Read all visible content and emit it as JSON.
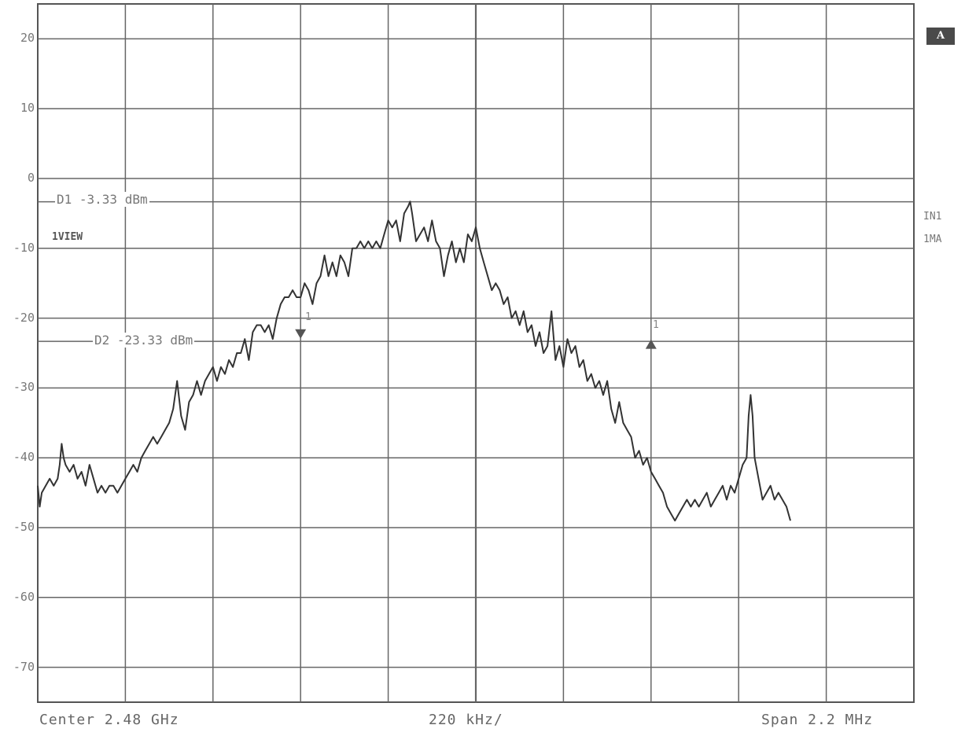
{
  "chart_data": {
    "type": "line",
    "ylim": [
      -75,
      25
    ],
    "xlim": [
      -1.1,
      1.1
    ],
    "y_ticks": [
      "20",
      "10",
      "0",
      "-10",
      "-20",
      "-30",
      "-40",
      "-50",
      "-60",
      "-70"
    ],
    "series": [
      {
        "values": [
          [
            -1.1,
            -44
          ],
          [
            -1.095,
            -47
          ],
          [
            -1.09,
            -45
          ],
          [
            -1.08,
            -44
          ],
          [
            -1.07,
            -43
          ],
          [
            -1.06,
            -44
          ],
          [
            -1.05,
            -43
          ],
          [
            -1.045,
            -41
          ],
          [
            -1.04,
            -38
          ],
          [
            -1.035,
            -40
          ],
          [
            -1.03,
            -41
          ],
          [
            -1.02,
            -42
          ],
          [
            -1.01,
            -41
          ],
          [
            -1.0,
            -43
          ],
          [
            -0.99,
            -42
          ],
          [
            -0.98,
            -44
          ],
          [
            -0.97,
            -41
          ],
          [
            -0.96,
            -43
          ],
          [
            -0.95,
            -45
          ],
          [
            -0.94,
            -44
          ],
          [
            -0.93,
            -45
          ],
          [
            -0.92,
            -44
          ],
          [
            -0.91,
            -44
          ],
          [
            -0.9,
            -45
          ],
          [
            -0.89,
            -44
          ],
          [
            -0.88,
            -43
          ],
          [
            -0.87,
            -42
          ],
          [
            -0.86,
            -41
          ],
          [
            -0.85,
            -42
          ],
          [
            -0.84,
            -40
          ],
          [
            -0.83,
            -39
          ],
          [
            -0.82,
            -38
          ],
          [
            -0.81,
            -37
          ],
          [
            -0.8,
            -38
          ],
          [
            -0.79,
            -37
          ],
          [
            -0.78,
            -36
          ],
          [
            -0.77,
            -35
          ],
          [
            -0.76,
            -33
          ],
          [
            -0.75,
            -29
          ],
          [
            -0.74,
            -34
          ],
          [
            -0.73,
            -36
          ],
          [
            -0.72,
            -32
          ],
          [
            -0.71,
            -31
          ],
          [
            -0.7,
            -29
          ],
          [
            -0.69,
            -31
          ],
          [
            -0.68,
            -29
          ],
          [
            -0.67,
            -28
          ],
          [
            -0.66,
            -27
          ],
          [
            -0.65,
            -29
          ],
          [
            -0.64,
            -27
          ],
          [
            -0.63,
            -28
          ],
          [
            -0.62,
            -26
          ],
          [
            -0.61,
            -27
          ],
          [
            -0.6,
            -25
          ],
          [
            -0.59,
            -25
          ],
          [
            -0.58,
            -23
          ],
          [
            -0.57,
            -26
          ],
          [
            -0.56,
            -22
          ],
          [
            -0.55,
            -21
          ],
          [
            -0.54,
            -21
          ],
          [
            -0.53,
            -22
          ],
          [
            -0.52,
            -21
          ],
          [
            -0.51,
            -23
          ],
          [
            -0.5,
            -20
          ],
          [
            -0.49,
            -18
          ],
          [
            -0.48,
            -17
          ],
          [
            -0.47,
            -17
          ],
          [
            -0.46,
            -16
          ],
          [
            -0.45,
            -17
          ],
          [
            -0.44,
            -17
          ],
          [
            -0.43,
            -15
          ],
          [
            -0.42,
            -16
          ],
          [
            -0.41,
            -18
          ],
          [
            -0.4,
            -15
          ],
          [
            -0.39,
            -14
          ],
          [
            -0.38,
            -11
          ],
          [
            -0.37,
            -14
          ],
          [
            -0.36,
            -12
          ],
          [
            -0.35,
            -14
          ],
          [
            -0.34,
            -11
          ],
          [
            -0.33,
            -12
          ],
          [
            -0.32,
            -14
          ],
          [
            -0.31,
            -10
          ],
          [
            -0.3,
            -10
          ],
          [
            -0.29,
            -9
          ],
          [
            -0.28,
            -10
          ],
          [
            -0.27,
            -9
          ],
          [
            -0.26,
            -10
          ],
          [
            -0.25,
            -9
          ],
          [
            -0.24,
            -10
          ],
          [
            -0.23,
            -8
          ],
          [
            -0.22,
            -6
          ],
          [
            -0.21,
            -7
          ],
          [
            -0.2,
            -6
          ],
          [
            -0.19,
            -9
          ],
          [
            -0.18,
            -5
          ],
          [
            -0.17,
            -4
          ],
          [
            -0.165,
            -3.3
          ],
          [
            -0.16,
            -5
          ],
          [
            -0.15,
            -9
          ],
          [
            -0.14,
            -8
          ],
          [
            -0.13,
            -7
          ],
          [
            -0.12,
            -9
          ],
          [
            -0.11,
            -6
          ],
          [
            -0.1,
            -9
          ],
          [
            -0.09,
            -10
          ],
          [
            -0.08,
            -14
          ],
          [
            -0.07,
            -11
          ],
          [
            -0.06,
            -9
          ],
          [
            -0.05,
            -12
          ],
          [
            -0.04,
            -10
          ],
          [
            -0.03,
            -12
          ],
          [
            -0.02,
            -8
          ],
          [
            -0.01,
            -9
          ],
          [
            0.0,
            -7
          ],
          [
            0.01,
            -10
          ],
          [
            0.02,
            -12
          ],
          [
            0.03,
            -14
          ],
          [
            0.04,
            -16
          ],
          [
            0.05,
            -15
          ],
          [
            0.06,
            -16
          ],
          [
            0.07,
            -18
          ],
          [
            0.08,
            -17
          ],
          [
            0.09,
            -20
          ],
          [
            0.1,
            -19
          ],
          [
            0.11,
            -21
          ],
          [
            0.12,
            -19
          ],
          [
            0.13,
            -22
          ],
          [
            0.14,
            -21
          ],
          [
            0.15,
            -24
          ],
          [
            0.16,
            -22
          ],
          [
            0.17,
            -25
          ],
          [
            0.18,
            -24
          ],
          [
            0.19,
            -19
          ],
          [
            0.2,
            -26
          ],
          [
            0.21,
            -24
          ],
          [
            0.22,
            -27
          ],
          [
            0.23,
            -23
          ],
          [
            0.24,
            -25
          ],
          [
            0.25,
            -24
          ],
          [
            0.26,
            -27
          ],
          [
            0.27,
            -26
          ],
          [
            0.28,
            -29
          ],
          [
            0.29,
            -28
          ],
          [
            0.3,
            -30
          ],
          [
            0.31,
            -29
          ],
          [
            0.32,
            -31
          ],
          [
            0.33,
            -29
          ],
          [
            0.34,
            -33
          ],
          [
            0.35,
            -35
          ],
          [
            0.36,
            -32
          ],
          [
            0.37,
            -35
          ],
          [
            0.38,
            -36
          ],
          [
            0.39,
            -37
          ],
          [
            0.4,
            -40
          ],
          [
            0.41,
            -39
          ],
          [
            0.42,
            -41
          ],
          [
            0.43,
            -40
          ],
          [
            0.44,
            -42
          ],
          [
            0.45,
            -43
          ],
          [
            0.46,
            -44
          ],
          [
            0.47,
            -45
          ],
          [
            0.48,
            -47
          ],
          [
            0.49,
            -48
          ],
          [
            0.5,
            -49
          ],
          [
            0.51,
            -48
          ],
          [
            0.52,
            -47
          ],
          [
            0.53,
            -46
          ],
          [
            0.54,
            -47
          ],
          [
            0.55,
            -46
          ],
          [
            0.56,
            -47
          ],
          [
            0.57,
            -46
          ],
          [
            0.58,
            -45
          ],
          [
            0.59,
            -47
          ],
          [
            0.6,
            -46
          ],
          [
            0.61,
            -45
          ],
          [
            0.62,
            -44
          ],
          [
            0.63,
            -46
          ],
          [
            0.64,
            -44
          ],
          [
            0.65,
            -45
          ],
          [
            0.66,
            -43
          ],
          [
            0.67,
            -41
          ],
          [
            0.68,
            -40
          ],
          [
            0.685,
            -34
          ],
          [
            0.69,
            -31
          ],
          [
            0.695,
            -34
          ],
          [
            0.7,
            -40
          ],
          [
            0.71,
            -43
          ],
          [
            0.72,
            -46
          ],
          [
            0.73,
            -45
          ],
          [
            0.74,
            -44
          ],
          [
            0.75,
            -46
          ],
          [
            0.76,
            -45
          ],
          [
            0.77,
            -46
          ],
          [
            0.78,
            -47
          ],
          [
            0.79,
            -49
          ]
        ]
      }
    ],
    "markers": [
      {
        "label": "1",
        "x": -0.44,
        "y": -22.5,
        "direction": "down"
      },
      {
        "label": "1",
        "x": 0.44,
        "y": -23.5,
        "direction": "up"
      }
    ],
    "reference_lines": [
      {
        "label": "D1 -3.33 dBm",
        "y": -3.33
      },
      {
        "label": "D2 -23.33 dBm",
        "y": -23.33
      }
    ],
    "annotations": {
      "view": "1VIEW",
      "trace_badge": "A",
      "right_labels": [
        "IN1",
        "1MA"
      ],
      "center": "Center 2.48 GHz",
      "per_div": "220 kHz/",
      "span": "Span 2.2 MHz"
    }
  }
}
